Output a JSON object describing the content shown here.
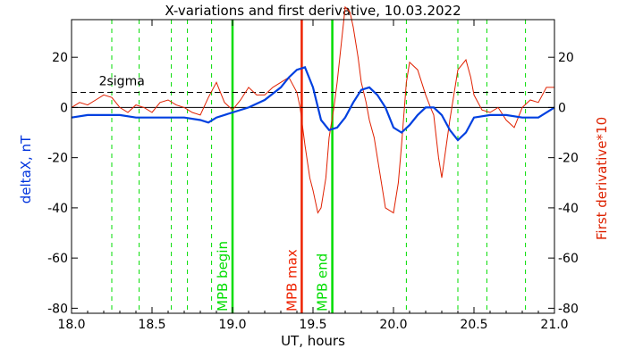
{
  "chart_data": {
    "type": "line",
    "title": "X-variations and first derivative, 10.03.2022",
    "xlabel": "UT, hours",
    "ylabel_left": "deltaX, nT",
    "ylabel_right": "First derivative*10",
    "xlim": [
      18.0,
      21.0
    ],
    "ylim": [
      -82,
      35
    ],
    "x_ticks": [
      "18.0",
      "18.5",
      "19.0",
      "19.5",
      "20.0",
      "20.5",
      "21.0"
    ],
    "x_tick_values": [
      18.0,
      18.5,
      19.0,
      19.5,
      20.0,
      20.5,
      21.0
    ],
    "y_ticks": [
      "20",
      "0",
      "-20",
      "-40",
      "-60",
      "-80"
    ],
    "y_tick_values": [
      20,
      0,
      -20,
      -40,
      -60,
      -80
    ],
    "colors": {
      "deltaX": "#0040e0",
      "derivative": "#e02000",
      "sigma": "#000000",
      "green": "#00dd00",
      "red": "#ee2200",
      "ylabel_left": "#0033dd",
      "ylabel_right": "#dd2200"
    },
    "sigma_label": "2sigma",
    "sigma_value": 6,
    "zero_line": 0,
    "dashed_verticals": [
      18.25,
      18.42,
      18.62,
      18.72,
      18.87,
      20.08,
      20.4,
      20.58,
      20.82
    ],
    "markers": [
      {
        "label": "MPB begin",
        "x": 19.0,
        "color": "#00dd00"
      },
      {
        "label": "MPB max",
        "x": 19.43,
        "color": "#ee2200"
      },
      {
        "label": "MPB end",
        "x": 19.62,
        "color": "#00dd00"
      }
    ],
    "series": [
      {
        "name": "deltaX",
        "x": [
          18.0,
          18.1,
          18.2,
          18.3,
          18.4,
          18.5,
          18.6,
          18.7,
          18.8,
          18.85,
          18.9,
          19.0,
          19.1,
          19.2,
          19.3,
          19.35,
          19.4,
          19.45,
          19.5,
          19.55,
          19.6,
          19.65,
          19.7,
          19.75,
          19.8,
          19.85,
          19.9,
          19.95,
          20.0,
          20.05,
          20.1,
          20.15,
          20.2,
          20.25,
          20.3,
          20.35,
          20.4,
          20.45,
          20.5,
          20.6,
          20.7,
          20.8,
          20.9,
          21.0
        ],
        "y": [
          -4,
          -3,
          -3,
          -3,
          -4,
          -4,
          -4,
          -4,
          -5,
          -6,
          -4,
          -2,
          0,
          3,
          8,
          12,
          15,
          16,
          8,
          -5,
          -9,
          -8,
          -4,
          2,
          7,
          8,
          5,
          0,
          -8,
          -10,
          -7,
          -3,
          0,
          0,
          -3,
          -9,
          -13,
          -10,
          -4,
          -3,
          -3,
          -4,
          -4,
          0
        ]
      },
      {
        "name": "First derivative*10",
        "x": [
          18.0,
          18.05,
          18.1,
          18.15,
          18.2,
          18.25,
          18.3,
          18.35,
          18.4,
          18.45,
          18.5,
          18.55,
          18.6,
          18.65,
          18.7,
          18.75,
          18.8,
          18.85,
          18.9,
          18.95,
          19.0,
          19.05,
          19.1,
          19.15,
          19.2,
          19.25,
          19.3,
          19.35,
          19.4,
          19.42,
          19.45,
          19.48,
          19.5,
          19.53,
          19.55,
          19.58,
          19.6,
          19.63,
          19.65,
          19.68,
          19.7,
          19.73,
          19.75,
          19.78,
          19.8,
          19.83,
          19.85,
          19.88,
          19.9,
          19.95,
          20.0,
          20.03,
          20.05,
          20.08,
          20.1,
          20.15,
          20.2,
          20.23,
          20.25,
          20.28,
          20.3,
          20.35,
          20.4,
          20.45,
          20.48,
          20.5,
          20.55,
          20.6,
          20.65,
          20.7,
          20.75,
          20.8,
          20.85,
          20.9,
          20.95,
          21.0
        ],
        "y": [
          0,
          2,
          1,
          3,
          5,
          4,
          0,
          -2,
          1,
          0,
          -2,
          2,
          3,
          1,
          0,
          -2,
          -3,
          4,
          10,
          2,
          -1,
          3,
          8,
          5,
          5,
          8,
          10,
          12,
          6,
          0,
          -15,
          -28,
          -33,
          -42,
          -40,
          -28,
          -12,
          0,
          10,
          28,
          40,
          38,
          32,
          20,
          10,
          2,
          -5,
          -12,
          -20,
          -40,
          -42,
          -30,
          -15,
          10,
          18,
          15,
          5,
          0,
          -3,
          -20,
          -28,
          -5,
          15,
          19,
          12,
          5,
          -1,
          -2,
          0,
          -5,
          -8,
          0,
          3,
          2,
          8,
          8
        ]
      }
    ]
  }
}
